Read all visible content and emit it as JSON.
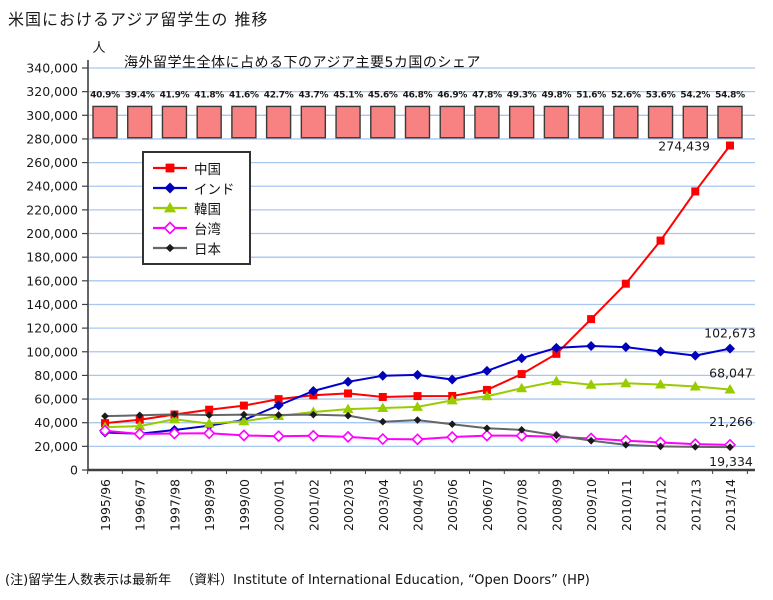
{
  "page": {
    "title": "米国におけるアジア留学生の 推移",
    "footer_note": "(注)留学生人数表示は最新年",
    "footer_source": "（資料）Institute of International Education, “Open Doors” (HP)"
  },
  "chart_data": {
    "type": "combo: line series + decorative share bars",
    "title": "米国におけるアジア留学生の 推移",
    "subtitle": "海外留学生全体に占める下のアジア主要5カ国のシェア",
    "y_axis": {
      "unit_label": "人",
      "min": 0,
      "max": 340000,
      "step": 20000,
      "grid": true,
      "grid_color": "#a8c7f0"
    },
    "categories": [
      "1995/96",
      "1996/97",
      "1997/98",
      "1998/99",
      "1999/00",
      "2000/01",
      "2001/02",
      "2002/03",
      "2003/04",
      "2004/05",
      "2005/06",
      "2006/07",
      "2007/08",
      "2008/09",
      "2009/10",
      "2010/11",
      "2011/12",
      "2012/13",
      "2013/14"
    ],
    "share_bars": {
      "description": "share of the 5 Asian countries below in all foreign students, equal-height pink bars with % labels",
      "values_pct": [
        40.9,
        39.4,
        41.9,
        41.8,
        41.6,
        42.7,
        43.7,
        45.1,
        45.6,
        46.8,
        46.9,
        47.8,
        49.3,
        49.8,
        51.6,
        52.6,
        53.6,
        54.2,
        54.8
      ],
      "fill": "#f88181",
      "stroke": "#3a3a3a"
    },
    "series": [
      {
        "key": "china",
        "name": "中国",
        "color": "#ff0000",
        "marker": "square",
        "marker_color": "#ff0000",
        "values": [
          39613,
          42503,
          46958,
          51001,
          54466,
          59939,
          63211,
          64757,
          61765,
          62523,
          62582,
          67723,
          81127,
          98235,
          127628,
          157558,
          194029,
          235597,
          274439
        ],
        "end_label": "274,439"
      },
      {
        "key": "india",
        "name": "インド",
        "color": "#0000cc",
        "marker": "diamond",
        "marker_color": "#0000bb",
        "values": [
          31743,
          30641,
          33818,
          37482,
          42337,
          54664,
          66836,
          74603,
          79736,
          80466,
          76503,
          83833,
          94563,
          103260,
          104897,
          103895,
          100270,
          96754,
          102673
        ],
        "end_label": "102,673"
      },
      {
        "key": "korea",
        "name": "韓国",
        "color": "#99cc00",
        "marker": "triangle",
        "marker_color": "#99cc00",
        "values": [
          36231,
          37130,
          42890,
          39199,
          41191,
          45685,
          49046,
          51519,
          52484,
          53358,
          58847,
          62392,
          69124,
          75065,
          72153,
          73351,
          72295,
          70627,
          68047
        ],
        "end_label": "68,047"
      },
      {
        "key": "taiwan",
        "name": "台湾",
        "color": "#ff00ff",
        "marker": "open-diamond",
        "marker_color": "#ff00ff",
        "values": [
          33237,
          30487,
          30855,
          31043,
          29234,
          28566,
          28930,
          28017,
          26178,
          25914,
          27876,
          29094,
          29001,
          28065,
          26685,
          24818,
          23250,
          21867,
          21266
        ],
        "end_label": "21,266"
      },
      {
        "key": "japan",
        "name": "日本",
        "color": "#666666",
        "marker": "small-diamond",
        "marker_color": "#1a1a1a",
        "values": [
          45531,
          46292,
          47073,
          46406,
          46872,
          46497,
          46810,
          45960,
          40835,
          42215,
          38712,
          35282,
          33974,
          29264,
          24842,
          21290,
          19966,
          19568,
          19334
        ],
        "end_label": "19,334"
      }
    ],
    "legend_position": "inside-upper-left",
    "xlabel": "",
    "ylabel": "人"
  }
}
